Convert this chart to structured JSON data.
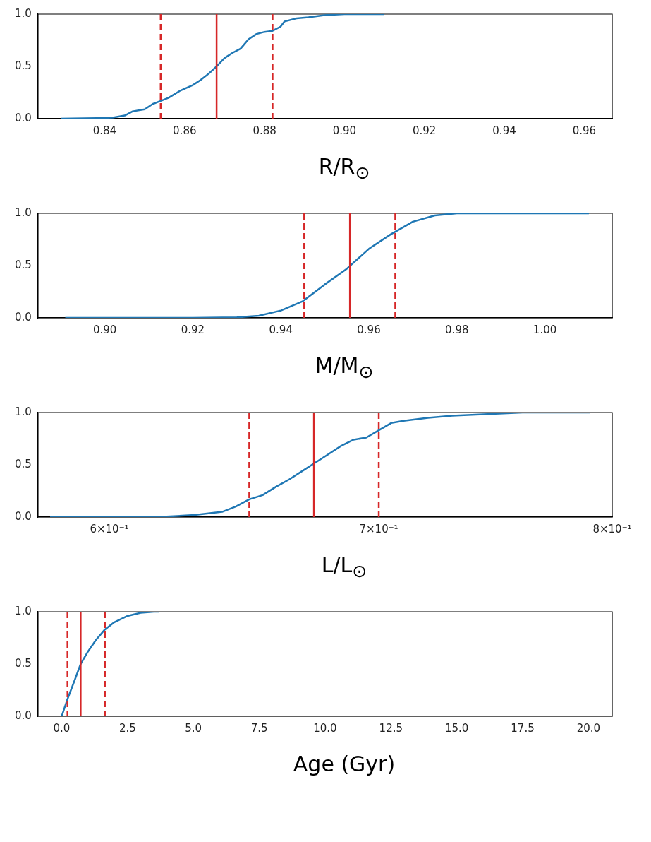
{
  "chart_data": [
    {
      "type": "line",
      "xlabel": "R/R$_{⊙}$",
      "color": "#1f77b4",
      "xlim": [
        0.8233,
        0.967
      ],
      "xticks": [
        {
          "value": 0.84,
          "label": "0.84"
        },
        {
          "value": 0.86,
          "label": "0.86"
        },
        {
          "value": 0.88,
          "label": "0.88"
        },
        {
          "value": 0.9,
          "label": "0.90"
        },
        {
          "value": 0.92,
          "label": "0.92"
        },
        {
          "value": 0.94,
          "label": "0.94"
        },
        {
          "value": 0.96,
          "label": "0.96"
        }
      ],
      "ylim": [
        0,
        1
      ],
      "yticks": [
        {
          "value": 0,
          "label": "0.0"
        },
        {
          "value": 0.5,
          "label": "0.5"
        },
        {
          "value": 1,
          "label": "1.0"
        }
      ],
      "x": [
        0.829,
        0.838,
        0.842,
        0.845,
        0.847,
        0.85,
        0.852,
        0.854,
        0.856,
        0.859,
        0.862,
        0.864,
        0.866,
        0.868,
        0.87,
        0.872,
        0.874,
        0.876,
        0.878,
        0.88,
        0.882,
        0.884,
        0.885,
        0.888,
        0.891,
        0.895,
        0.9,
        0.91
      ],
      "values": [
        0,
        0.005,
        0.01,
        0.03,
        0.07,
        0.09,
        0.14,
        0.17,
        0.2,
        0.27,
        0.32,
        0.37,
        0.43,
        0.5,
        0.58,
        0.63,
        0.67,
        0.76,
        0.81,
        0.83,
        0.84,
        0.88,
        0.93,
        0.96,
        0.97,
        0.99,
        1,
        1
      ],
      "ref_lines": [
        {
          "axis": "x",
          "value": 0.854,
          "color": "#d62728",
          "line_style": "dashed"
        },
        {
          "axis": "x",
          "value": 0.868,
          "color": "#d62728",
          "line_style": "solid"
        },
        {
          "axis": "x",
          "value": 0.882,
          "color": "#d62728",
          "line_style": "dashed"
        }
      ]
    },
    {
      "type": "line",
      "xlabel": "M/M$_{⊙}$",
      "color": "#1f77b4",
      "xlim": [
        0.8848,
        1.0153
      ],
      "xticks": [
        {
          "value": 0.9,
          "label": "0.90"
        },
        {
          "value": 0.92,
          "label": "0.92"
        },
        {
          "value": 0.94,
          "label": "0.94"
        },
        {
          "value": 0.96,
          "label": "0.96"
        },
        {
          "value": 0.98,
          "label": "0.98"
        },
        {
          "value": 1,
          "label": "1.00"
        }
      ],
      "ylim": [
        0,
        1
      ],
      "yticks": [
        {
          "value": 0,
          "label": "0.0"
        },
        {
          "value": 0.5,
          "label": "0.5"
        },
        {
          "value": 1,
          "label": "1.0"
        }
      ],
      "x": [
        0.891,
        0.92,
        0.93,
        0.935,
        0.94,
        0.945,
        0.95,
        0.955,
        0.96,
        0.965,
        0.97,
        0.975,
        0.98,
        1.01
      ],
      "values": [
        0,
        0,
        0.005,
        0.02,
        0.07,
        0.16,
        0.32,
        0.47,
        0.66,
        0.8,
        0.92,
        0.98,
        1,
        1
      ],
      "ref_lines": [
        {
          "axis": "x",
          "value": 0.9453,
          "color": "#d62728",
          "line_style": "dashed"
        },
        {
          "axis": "x",
          "value": 0.9557,
          "color": "#d62728",
          "line_style": "solid"
        },
        {
          "axis": "x",
          "value": 0.966,
          "color": "#d62728",
          "line_style": "dashed"
        }
      ]
    },
    {
      "type": "line",
      "xlabel": "L/L$_{⊙}$",
      "color": "#1f77b4",
      "log": "x",
      "xlim": [
        0.576,
        0.8
      ],
      "xticks": [
        {
          "value": 0.6,
          "label": "6×10⁻¹"
        },
        {
          "value": 0.7,
          "label": "7×10⁻¹"
        },
        {
          "value": 0.8,
          "label": "8×10⁻¹"
        }
      ],
      "ylim": [
        0,
        1
      ],
      "yticks": [
        {
          "value": 0,
          "label": "0.0"
        },
        {
          "value": 0.5,
          "label": "0.5"
        },
        {
          "value": 1,
          "label": "1.0"
        }
      ],
      "x": [
        0.58,
        0.62,
        0.63,
        0.64,
        0.645,
        0.65,
        0.655,
        0.66,
        0.665,
        0.67,
        0.675,
        0.68,
        0.685,
        0.69,
        0.695,
        0.7,
        0.705,
        0.71,
        0.72,
        0.73,
        0.75,
        0.76,
        0.79
      ],
      "values": [
        0,
        0.005,
        0.02,
        0.05,
        0.1,
        0.17,
        0.21,
        0.29,
        0.36,
        0.44,
        0.52,
        0.6,
        0.68,
        0.74,
        0.76,
        0.83,
        0.9,
        0.92,
        0.95,
        0.97,
        0.99,
        1,
        1
      ],
      "ref_lines": [
        {
          "axis": "x",
          "value": 0.65,
          "color": "#d62728",
          "line_style": "dashed"
        },
        {
          "axis": "x",
          "value": 0.6745,
          "color": "#d62728",
          "line_style": "solid"
        },
        {
          "axis": "x",
          "value": 0.7,
          "color": "#d62728",
          "line_style": "dashed"
        }
      ]
    },
    {
      "type": "line",
      "xlabel": "Age (Gyr)",
      "color": "#1f77b4",
      "xlim": [
        -0.9,
        20.9
      ],
      "xticks": [
        {
          "value": 0,
          "label": "0.0"
        },
        {
          "value": 2.5,
          "label": "2.5"
        },
        {
          "value": 5,
          "label": "5.0"
        },
        {
          "value": 7.5,
          "label": "7.5"
        },
        {
          "value": 10,
          "label": "10.0"
        },
        {
          "value": 12.5,
          "label": "12.5"
        },
        {
          "value": 15,
          "label": "15.0"
        },
        {
          "value": 17.5,
          "label": "17.5"
        },
        {
          "value": 20,
          "label": "20.0"
        }
      ],
      "ylim": [
        0,
        1
      ],
      "yticks": [
        {
          "value": 0,
          "label": "0.0"
        },
        {
          "value": 0.5,
          "label": "0.5"
        },
        {
          "value": 1,
          "label": "1.0"
        }
      ],
      "x": [
        0,
        0.2,
        0.5,
        0.72,
        1,
        1.3,
        1.64,
        2,
        2.5,
        3,
        3.5,
        3.7
      ],
      "values": [
        0,
        0.15,
        0.35,
        0.5,
        0.62,
        0.73,
        0.83,
        0.9,
        0.96,
        0.99,
        1,
        1
      ],
      "ref_lines": [
        {
          "axis": "x",
          "value": 0.22,
          "color": "#d62728",
          "line_style": "dashed"
        },
        {
          "axis": "x",
          "value": 0.72,
          "color": "#d62728",
          "line_style": "solid"
        },
        {
          "axis": "x",
          "value": 1.64,
          "color": "#d62728",
          "line_style": "dashed"
        }
      ]
    }
  ]
}
